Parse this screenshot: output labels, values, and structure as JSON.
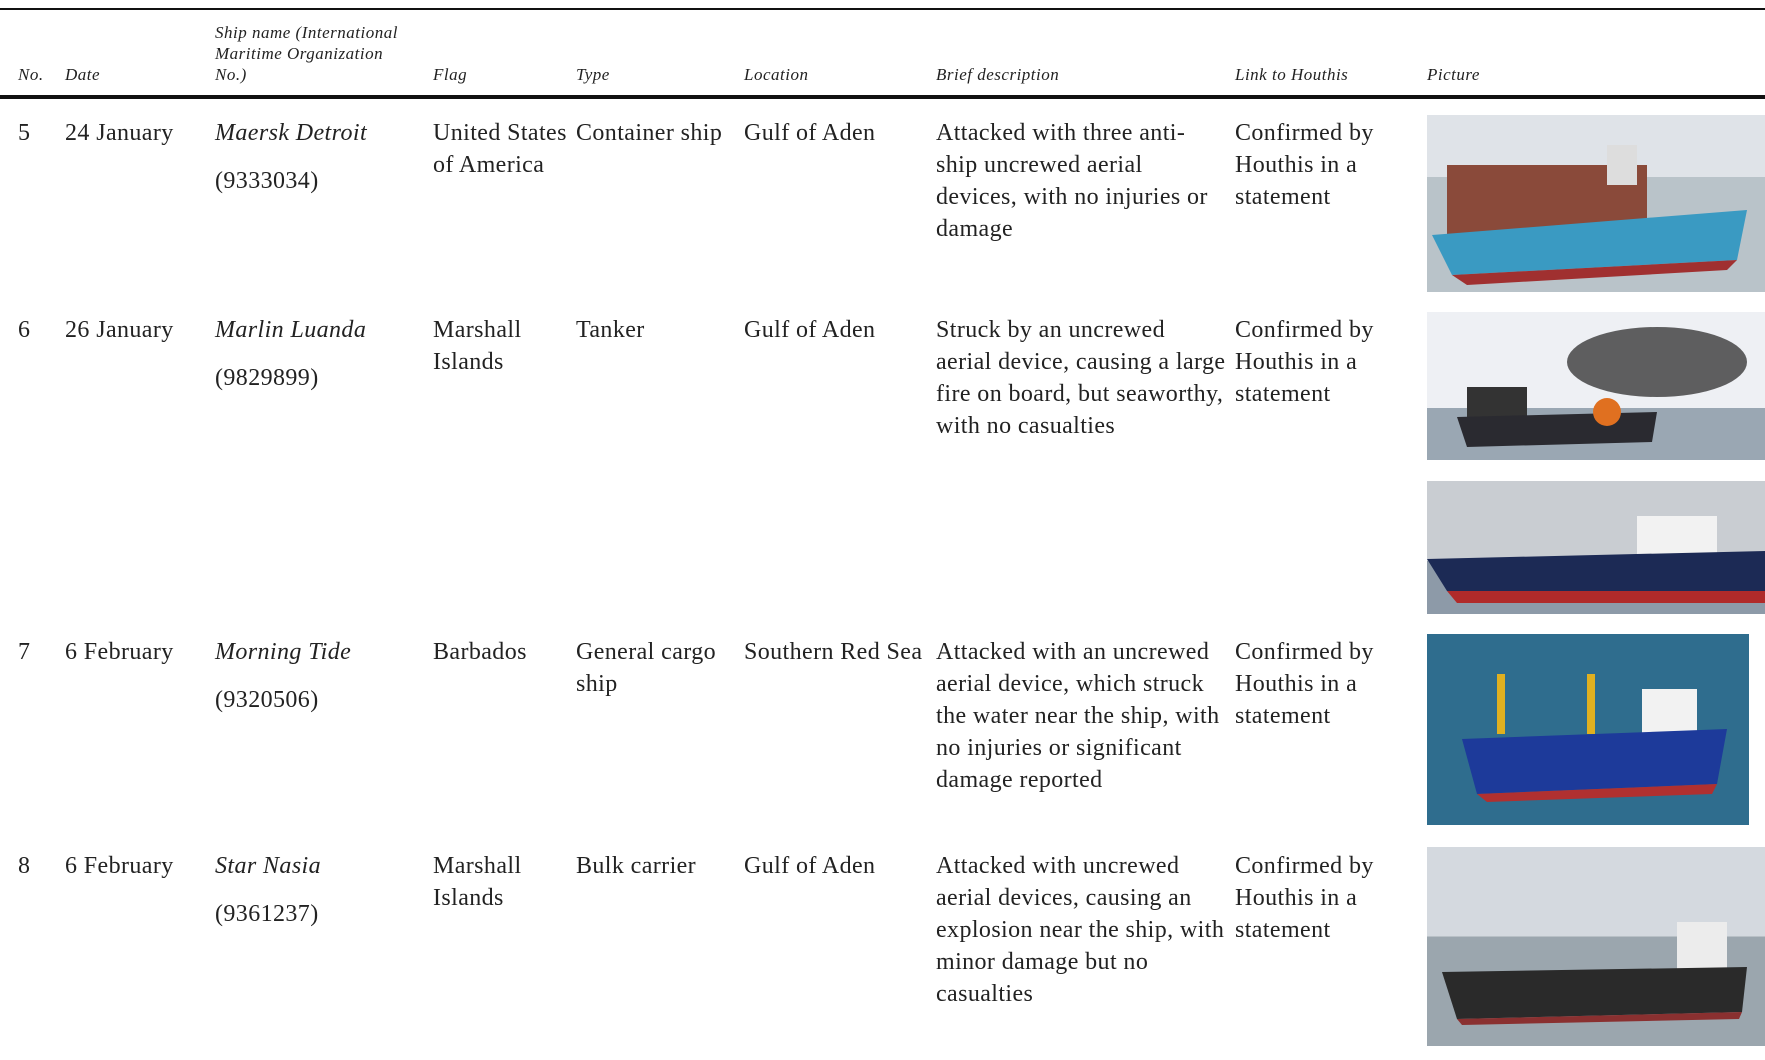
{
  "table": {
    "headers": [
      "No.",
      "Date",
      "Ship name (International Maritime Organization No.)",
      "Flag",
      "Type",
      "Location",
      "Brief description",
      "Link to Houthis",
      "Picture"
    ],
    "rows": [
      [
        "5",
        "24 January",
        "Maersk Detroit",
        "(9333034)",
        "United States of America",
        "Container ship",
        "Gulf of Aden",
        "Attacked with three anti-ship uncrewed aerial devices, with no injuries or damage",
        "Confirmed by Houthis in a statement"
      ],
      [
        "6",
        "26 January",
        "Marlin Luanda",
        "(9829899)",
        "Marshall Islands",
        "Tanker",
        "Gulf of Aden",
        "Struck by an uncrewed aerial device, causing a large fire on board, but seaworthy, with no casualties",
        "Confirmed by Houthis in a statement"
      ],
      [
        "7",
        "6 February",
        "Morning Tide",
        "(9320506)",
        "Barbados",
        "General cargo ship",
        "Southern Red Sea",
        "Attacked with an uncrewed aerial device, which struck the water near the ship, with no injuries or significant damage reported",
        "Confirmed by Houthis in a statement"
      ],
      [
        "8",
        "6 February",
        "Star Nasia",
        "(9361237)",
        "Marshall Islands",
        "Bulk carrier",
        "Gulf of Aden",
        "Attacked with uncrewed aerial devices, causing an explosion near the ship, with minor damage but no casualties",
        "Confirmed by Houthis in a statement"
      ]
    ]
  }
}
